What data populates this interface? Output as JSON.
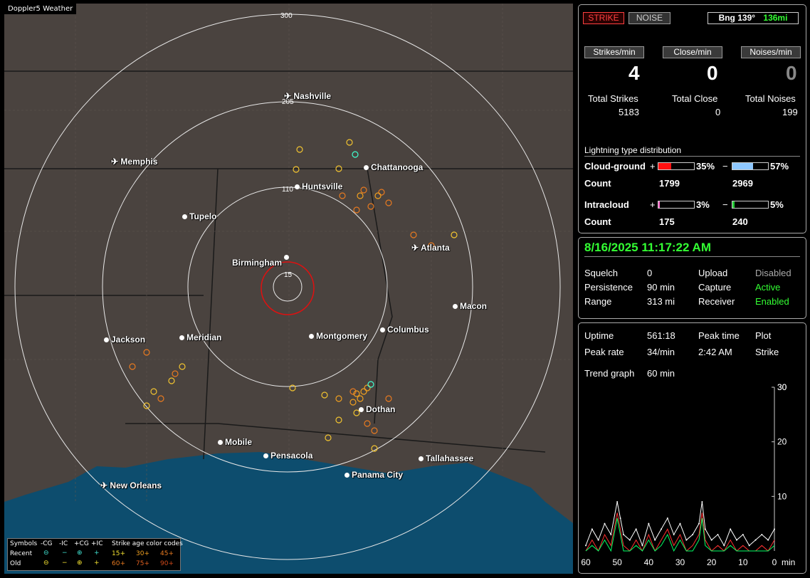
{
  "app": {
    "title": "Doppler5 Weather"
  },
  "map": {
    "ring_labels": [
      "300",
      "205",
      "110",
      "15"
    ],
    "cities": [
      {
        "name": "Nashville",
        "type": "airport"
      },
      {
        "name": "Memphis",
        "type": "airport"
      },
      {
        "name": "Chattanooga",
        "type": "city"
      },
      {
        "name": "Huntsville",
        "type": "city"
      },
      {
        "name": "Tupelo",
        "type": "city"
      },
      {
        "name": "Atlanta",
        "type": "airport"
      },
      {
        "name": "Birmingham",
        "type": "city"
      },
      {
        "name": "Macon",
        "type": "city"
      },
      {
        "name": "Jackson",
        "type": "city"
      },
      {
        "name": "Meridian",
        "type": "city"
      },
      {
        "name": "Montgomery",
        "type": "city"
      },
      {
        "name": "Columbus",
        "type": "city"
      },
      {
        "name": "Dothan",
        "type": "city"
      },
      {
        "name": "Mobile",
        "type": "city"
      },
      {
        "name": "Pensacola",
        "type": "city"
      },
      {
        "name": "Tallahassee",
        "type": "city"
      },
      {
        "name": "Panama City",
        "type": "city"
      },
      {
        "name": "New Orleans",
        "type": "airport"
      }
    ],
    "legend": {
      "symbols_label": "Symbols",
      "cols": [
        "-CG",
        "-IC",
        "+CG",
        "+IC"
      ],
      "recent_label": "Recent",
      "old_label": "Old",
      "age_title": "Strike age color codes",
      "recent_ages": [
        "15+",
        "30+",
        "45+"
      ],
      "old_ages": [
        "60+",
        "75+",
        "90+"
      ]
    }
  },
  "top": {
    "strike_btn": "STRIKE",
    "noise_btn": "NOISE",
    "bearing": "Bng 139°",
    "range": "136mi",
    "rate_labels": [
      "Strikes/min",
      "Close/min",
      "Noises/min"
    ],
    "rate_values": [
      "4",
      "0",
      "0"
    ],
    "total_labels": [
      "Total Strikes",
      "Total Close",
      "Total Noises"
    ],
    "total_values": [
      "5183",
      "0",
      "199"
    ],
    "dist_title": "Lightning type distribution",
    "cg_label": "Cloud-ground",
    "ic_label": "Intracloud",
    "count_label": "Count",
    "plus": "+",
    "minus": "−",
    "cg_pos_pct": "35%",
    "cg_neg_pct": "57%",
    "cg_pos_count": "1799",
    "cg_neg_count": "2969",
    "ic_pos_pct": "3%",
    "ic_neg_pct": "5%",
    "ic_pos_count": "175",
    "ic_neg_count": "240",
    "fill": {
      "cg_pos": 0.35,
      "cg_neg": 0.57,
      "ic_pos": 0.03,
      "ic_neg": 0.05
    }
  },
  "status": {
    "datetime": "8/16/2025 11:17:22 AM",
    "squelch_label": "Squelch",
    "squelch_value": "0",
    "persistence_label": "Persistence",
    "persistence_value": "90 min",
    "range_label": "Range",
    "range_value": "313 mi",
    "upload_label": "Upload",
    "upload_value": "Disabled",
    "capture_label": "Capture",
    "capture_value": "Active",
    "receiver_label": "Receiver",
    "receiver_value": "Enabled"
  },
  "trend": {
    "uptime_label": "Uptime",
    "uptime_value": "561:18",
    "peak_time_label": "Peak time",
    "plot_label": "Plot",
    "peak_rate_label": "Peak rate",
    "peak_rate_value": "34/min",
    "peak_time_value": "2:42 AM",
    "plot_value": "Strike",
    "trend_label": "Trend graph",
    "trend_value": "60 min"
  },
  "chart_data": {
    "type": "line",
    "x": [
      60,
      58,
      56,
      54,
      52,
      50,
      49,
      48,
      46,
      44,
      42,
      40,
      38,
      36,
      34,
      32,
      30,
      28,
      26,
      24,
      23,
      22,
      20,
      18,
      16,
      14,
      12,
      10,
      8,
      6,
      4,
      2,
      0
    ],
    "series": [
      {
        "values": [
          1,
          4,
          2,
          5,
          3,
          9,
          6,
          3,
          2,
          4,
          1,
          5,
          2,
          4,
          6,
          3,
          5,
          2,
          3,
          5,
          9,
          4,
          2,
          3,
          1,
          4,
          2,
          3,
          1,
          2,
          3,
          2,
          4
        ]
      }
    ],
    "x_ticks": [
      "60",
      "50",
      "40",
      "30",
      "20",
      "10",
      "0"
    ],
    "x_unit": "min",
    "y_ticks": [
      "10",
      "20",
      "30"
    ],
    "xlim": [
      60,
      0
    ],
    "ylim": [
      0,
      30
    ],
    "grid": false,
    "colors": {
      "line": "#ffffff",
      "neg_cg": "#ff3030",
      "pos_cg": "#00ff66"
    }
  },
  "colors": {
    "accent_green": "#33ff33",
    "strike_red": "#ff3333"
  }
}
